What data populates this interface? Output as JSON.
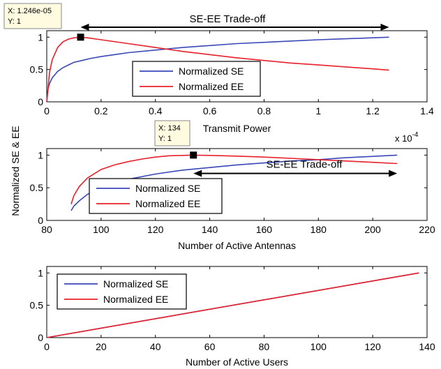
{
  "figure": {
    "ylabel": "Normalized SE & EE"
  },
  "chart_data": [
    {
      "type": "line",
      "xlabel": "Transmit Power",
      "ylabel": "",
      "x_exponent_label": "x 10",
      "x_exponent_sup": "-4",
      "x_scale": 0.0001,
      "xlim": [
        0,
        1.4
      ],
      "ylim": [
        0,
        1.1
      ],
      "xticks": [
        0,
        0.2,
        0.4,
        0.6,
        0.8,
        1,
        1.2,
        1.4
      ],
      "xtick_labels": [
        "0",
        "0.2",
        "0.4",
        "0.6",
        "0.8",
        "1",
        "1.2",
        "1.4"
      ],
      "yticks": [
        0,
        0.5,
        1
      ],
      "ytick_labels": [
        "0",
        "0.5",
        "1"
      ],
      "grid": false,
      "legend_position": "center",
      "series": [
        {
          "name": "Normalized SE",
          "color": "#3a48b7",
          "x": [
            0.0,
            0.005,
            0.01,
            0.02,
            0.04,
            0.06,
            0.08,
            0.1,
            0.13,
            0.16,
            0.2,
            0.25,
            0.3,
            0.4,
            0.5,
            0.6,
            0.7,
            0.8,
            0.9,
            1.0,
            1.1,
            1.2,
            1.26
          ],
          "y": [
            0.0,
            0.2,
            0.28,
            0.37,
            0.47,
            0.53,
            0.57,
            0.61,
            0.64,
            0.67,
            0.7,
            0.73,
            0.76,
            0.8,
            0.84,
            0.87,
            0.9,
            0.92,
            0.94,
            0.96,
            0.975,
            0.99,
            1.0
          ]
        },
        {
          "name": "Normalized EE",
          "color": "#e8202a",
          "x": [
            0.0,
            0.01,
            0.02,
            0.04,
            0.06,
            0.08,
            0.1,
            0.1246,
            0.15,
            0.2,
            0.3,
            0.4,
            0.5,
            0.6,
            0.7,
            0.8,
            0.9,
            1.0,
            1.1,
            1.2,
            1.26
          ],
          "y": [
            0.0,
            0.45,
            0.65,
            0.84,
            0.93,
            0.97,
            0.99,
            1.0,
            0.99,
            0.96,
            0.9,
            0.84,
            0.78,
            0.73,
            0.68,
            0.64,
            0.6,
            0.57,
            0.54,
            0.51,
            0.49
          ]
        }
      ],
      "datatip": {
        "x_label": "X: 1.246e-05",
        "y_label": "Y: 1",
        "x": 0.1246,
        "y": 1
      },
      "annotation": {
        "text": "SE-EE Trade-off",
        "x_from": 0.1246,
        "x_to": 1.26,
        "y": 1.0
      }
    },
    {
      "type": "line",
      "xlabel": "Number of Active Antennas",
      "ylabel": "",
      "xlim": [
        80,
        220
      ],
      "ylim": [
        0,
        1.1
      ],
      "xticks": [
        80,
        100,
        120,
        140,
        160,
        180,
        200,
        220
      ],
      "xtick_labels": [
        "80",
        "100",
        "120",
        "140",
        "160",
        "180",
        "200",
        "220"
      ],
      "yticks": [
        0,
        0.5,
        1
      ],
      "ytick_labels": [
        "0",
        "0.5",
        "1"
      ],
      "grid": false,
      "legend_position": "bottom-left",
      "series": [
        {
          "name": "Normalized SE",
          "color": "#3a48b7",
          "x": [
            89,
            90,
            92,
            95,
            100,
            105,
            110,
            120,
            130,
            140,
            150,
            160,
            170,
            180,
            190,
            200,
            209
          ],
          "y": [
            0.15,
            0.22,
            0.3,
            0.4,
            0.5,
            0.57,
            0.63,
            0.71,
            0.77,
            0.81,
            0.85,
            0.88,
            0.91,
            0.93,
            0.96,
            0.98,
            1.0
          ]
        },
        {
          "name": "Normalized EE",
          "color": "#e8202a",
          "x": [
            89,
            90,
            92,
            95,
            100,
            105,
            110,
            115,
            120,
            125,
            130,
            134,
            140,
            150,
            160,
            170,
            180,
            190,
            200,
            209
          ],
          "y": [
            0.25,
            0.38,
            0.52,
            0.65,
            0.78,
            0.85,
            0.9,
            0.94,
            0.97,
            0.99,
            0.995,
            1.0,
            0.995,
            0.985,
            0.97,
            0.95,
            0.93,
            0.91,
            0.89,
            0.87
          ]
        }
      ],
      "datatip": {
        "x_label": "X: 134",
        "y_label": "Y: 1",
        "x": 134,
        "y": 1
      },
      "annotation": {
        "text": "SE-EE Trade-off",
        "x_from": 134,
        "x_to": 209,
        "y": 0.72
      }
    },
    {
      "type": "line",
      "xlabel": "Number of Active Users",
      "ylabel": "",
      "xlim": [
        0,
        140
      ],
      "ylim": [
        0,
        1.1
      ],
      "xticks": [
        0,
        20,
        40,
        60,
        80,
        100,
        120,
        140
      ],
      "xtick_labels": [
        "0",
        "20",
        "40",
        "60",
        "80",
        "100",
        "120",
        "140"
      ],
      "yticks": [
        0,
        0.5,
        1
      ],
      "ytick_labels": [
        "0",
        "0.5",
        "1"
      ],
      "grid": false,
      "legend_position": "top-left",
      "series": [
        {
          "name": "Normalized SE",
          "color": "#3a48b7",
          "x": [
            0,
            137
          ],
          "y": [
            0,
            1
          ]
        },
        {
          "name": "Normalized EE",
          "color": "#e8202a",
          "x": [
            0,
            137
          ],
          "y": [
            0,
            1
          ]
        }
      ]
    }
  ]
}
